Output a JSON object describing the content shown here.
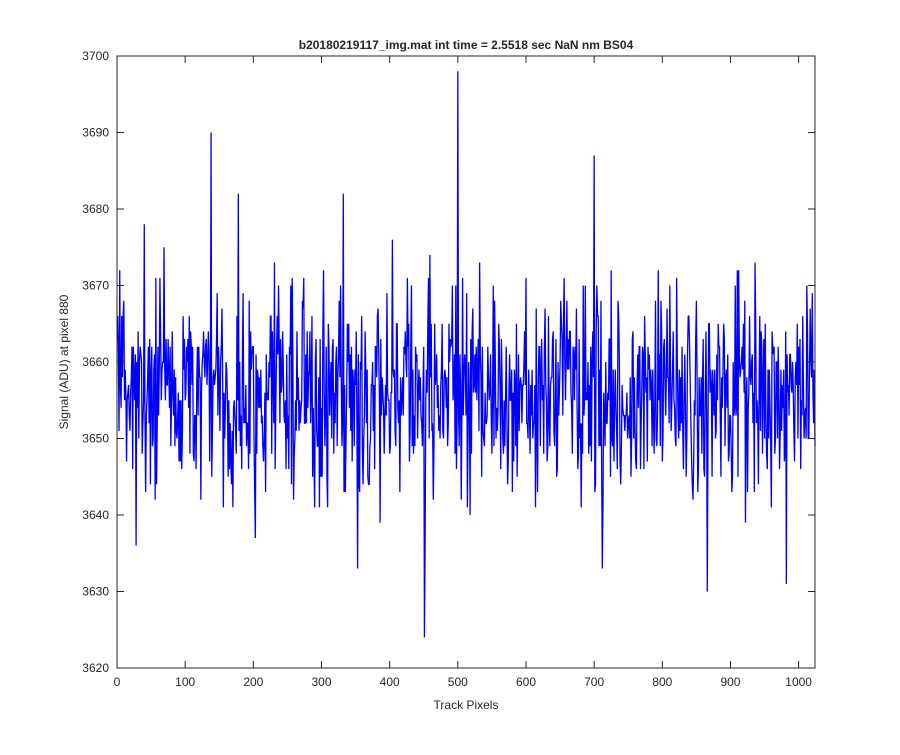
{
  "chart_data": {
    "type": "line",
    "title": "b20180219117_img.mat int time = 2.5518 sec  NaN nm BS04",
    "xlabel": "Track Pixels",
    "ylabel": "Signal (ADU) at pixel 880",
    "xlim": [
      0,
      1024
    ],
    "ylim": [
      3620,
      3700
    ],
    "xticks": [
      0,
      100,
      200,
      300,
      400,
      500,
      600,
      700,
      800,
      900,
      1000
    ],
    "yticks": [
      3620,
      3630,
      3640,
      3650,
      3660,
      3670,
      3680,
      3690,
      3700
    ],
    "grid": false,
    "legend": "none",
    "series": [
      {
        "color": "#0000ff",
        "x_start": 1,
        "x_step": 1,
        "points": 1024,
        "noise_mean": 3656,
        "noise_sd": 7,
        "spikes": [
          {
            "x": 28,
            "y": 3636
          },
          {
            "x": 40,
            "y": 3678
          },
          {
            "x": 138,
            "y": 3690
          },
          {
            "x": 178,
            "y": 3682
          },
          {
            "x": 203,
            "y": 3637
          },
          {
            "x": 332,
            "y": 3682
          },
          {
            "x": 451,
            "y": 3624
          },
          {
            "x": 500,
            "y": 3698
          },
          {
            "x": 700,
            "y": 3687
          },
          {
            "x": 866,
            "y": 3630
          },
          {
            "x": 982,
            "y": 3631
          }
        ]
      }
    ]
  }
}
